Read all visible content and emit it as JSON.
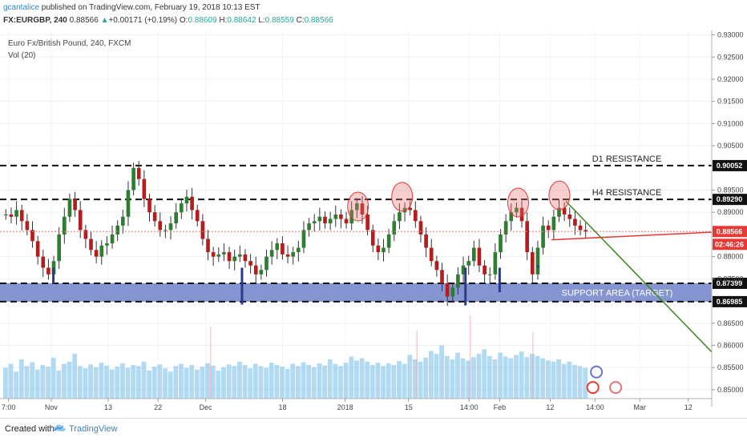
{
  "header": {
    "user": "gcantalice",
    "published": " published on TradingView.com, February 19, 2018 10:13 EST",
    "symbol": "FX:EURGBP, 240",
    "last": "0.88566",
    "change_arrow": "▲",
    "change": "+0.00171 (+0.19%)",
    "o_label": "O:",
    "o": "0.88609",
    "h_label": "H:",
    "h": "0.88642",
    "l_label": "L:",
    "l": "0.88559",
    "c_label": "C:",
    "c": "0.88566"
  },
  "footer": {
    "created": "Created with",
    "brand": "TradingView"
  },
  "chart_data": {
    "type": "candlestick",
    "title": "Euro Fx/British Pound, 240, FXCM",
    "indicator": "Vol (20)",
    "ylim": [
      0.848,
      0.931
    ],
    "y_ticks": [
      "0.93000",
      "0.92500",
      "0.92000",
      "0.91500",
      "0.91000",
      "0.90500",
      "0.89500",
      "0.89000",
      "0.88000",
      "0.87500",
      "0.86500",
      "0.86000",
      "0.85500",
      "0.85000"
    ],
    "y_tick_values": [
      0.93,
      0.925,
      0.92,
      0.915,
      0.91,
      0.905,
      0.895,
      0.89,
      0.88,
      0.875,
      0.865,
      0.86,
      0.855,
      0.85
    ],
    "x_ticks": [
      "7:00",
      "Nov",
      "13",
      "22",
      "Dec",
      "18",
      "2018",
      "15",
      "14:00",
      "Feb",
      "12",
      "14:00",
      "Mar",
      "12"
    ],
    "levels": [
      {
        "label": "D1 RESISTANCE",
        "price_label": "0.90052",
        "value": 0.90052
      },
      {
        "label": "H4 RESISTANCE",
        "price_label": "0.89290",
        "value": 0.8929
      },
      {
        "label": "",
        "price_label": "0.87399",
        "value": 0.87399
      },
      {
        "label": "",
        "price_label": "0.86985",
        "value": 0.86985
      }
    ],
    "support_label": "SUPPORT AREA (TARGET)",
    "support_range": [
      0.86985,
      0.87399
    ],
    "last_price": {
      "label": "0.88566",
      "value": 0.88566
    },
    "countdown": "02:46:26",
    "close_series": [
      0.8895,
      0.889,
      0.8905,
      0.888,
      0.886,
      0.8835,
      0.88,
      0.8775,
      0.876,
      0.879,
      0.885,
      0.889,
      0.893,
      0.8905,
      0.886,
      0.884,
      0.8815,
      0.88,
      0.8825,
      0.883,
      0.885,
      0.887,
      0.889,
      0.895,
      0.9,
      0.8975,
      0.893,
      0.89,
      0.888,
      0.886,
      0.886,
      0.8875,
      0.89,
      0.892,
      0.8935,
      0.8905,
      0.888,
      0.884,
      0.881,
      0.88,
      0.8805,
      0.881,
      0.879,
      0.88,
      0.8805,
      0.879,
      0.878,
      0.876,
      0.877,
      0.88,
      0.8815,
      0.883,
      0.8805,
      0.88,
      0.881,
      0.882,
      0.886,
      0.8875,
      0.888,
      0.889,
      0.8875,
      0.8885,
      0.8895,
      0.8885,
      0.8875,
      0.8905,
      0.892,
      0.8895,
      0.886,
      0.8825,
      0.881,
      0.882,
      0.885,
      0.888,
      0.89,
      0.891,
      0.8905,
      0.888,
      0.885,
      0.882,
      0.879,
      0.877,
      0.874,
      0.871,
      0.873,
      0.876,
      0.878,
      0.879,
      0.882,
      0.878,
      0.876,
      0.876,
      0.881,
      0.885,
      0.888,
      0.89,
      0.891,
      0.888,
      0.881,
      0.876,
      0.882,
      0.887,
      0.886,
      0.889,
      0.891,
      0.8895,
      0.8885,
      0.887,
      0.886,
      0.8857
    ],
    "volume_series": [
      0.55,
      0.62,
      0.48,
      0.7,
      0.58,
      0.65,
      0.52,
      0.6,
      0.57,
      0.73,
      0.5,
      0.62,
      0.66,
      0.8,
      0.58,
      0.54,
      0.61,
      0.56,
      0.64,
      0.59,
      0.52,
      0.57,
      0.63,
      0.55,
      0.6,
      0.58,
      0.66,
      0.5,
      0.57,
      0.61,
      0.54,
      0.48,
      0.58,
      0.62,
      0.55,
      0.6,
      0.52,
      0.57,
      0.63,
      0.59,
      0.5,
      0.56,
      0.61,
      0.58,
      0.66,
      0.6,
      0.54,
      0.62,
      0.58,
      0.55,
      0.64,
      0.6,
      0.57,
      0.53,
      0.62,
      0.58,
      0.65,
      0.6,
      0.56,
      0.63,
      0.59,
      0.7,
      0.62,
      0.58,
      0.64,
      0.75,
      0.68,
      0.72,
      0.66,
      0.6,
      0.64,
      0.58,
      0.63,
      0.6,
      0.67,
      0.62,
      0.78,
      0.7,
      0.66,
      0.73,
      0.85,
      0.8,
      0.95,
      0.76,
      0.7,
      0.82,
      0.72,
      0.68,
      0.74,
      0.8,
      0.88,
      0.76,
      0.7,
      0.82,
      0.75,
      0.72,
      0.78,
      0.84,
      0.74,
      0.8,
      0.76,
      0.72,
      0.68,
      0.66,
      0.7,
      0.62,
      0.66,
      0.6,
      0.58,
      0.55
    ],
    "resistance_circles": [
      {
        "x_frac": 0.503,
        "value": 0.8913
      },
      {
        "x_frac": 0.565,
        "value": 0.8935
      },
      {
        "x_frac": 0.728,
        "value": 0.8922
      },
      {
        "x_frac": 0.786,
        "value": 0.8938
      }
    ]
  }
}
